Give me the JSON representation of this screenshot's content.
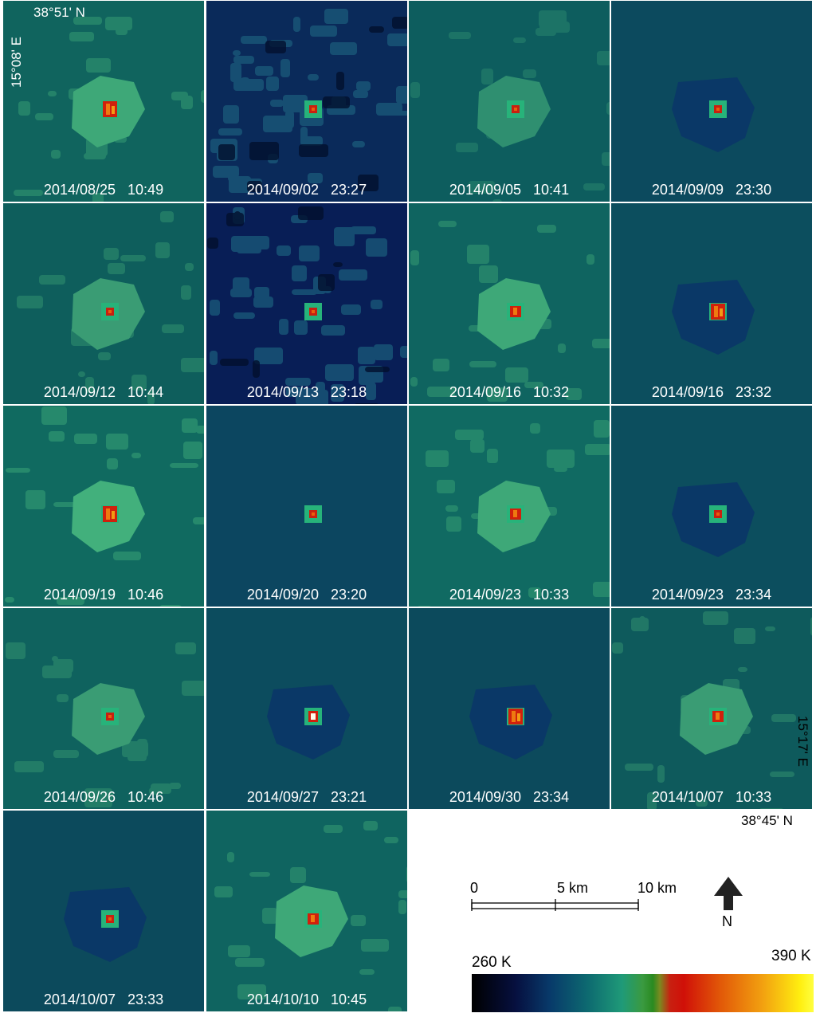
{
  "coordinates": {
    "top_lat": "38°51' N",
    "left_lon": "15°08' E",
    "right_lon": "15°17' E",
    "bottom_lat": "38°45' N"
  },
  "tiles": [
    {
      "date": "2014/08/25",
      "time": "10:49",
      "background": "#10645e",
      "island": "#3ea878",
      "dark_halo": false,
      "hot": "large"
    },
    {
      "date": "2014/09/02",
      "time": "23:27",
      "background": "#0a2a5a",
      "island": null,
      "dark_halo": false,
      "hot": "small",
      "night_clouds": true
    },
    {
      "date": "2014/09/05",
      "time": "10:41",
      "background": "#0d5d5e",
      "island": "#2f8f70",
      "dark_halo": false,
      "hot": "small"
    },
    {
      "date": "2014/09/09",
      "time": "23:30",
      "background": "#0c4a5e",
      "island": null,
      "dark_halo": true,
      "hot": "small"
    },
    {
      "date": "2014/09/12",
      "time": "10:44",
      "background": "#0e5e5c",
      "island": "#3a9c74",
      "dark_halo": false,
      "hot": "small"
    },
    {
      "date": "2014/09/13",
      "time": "23:18",
      "background": "#081e56",
      "island": null,
      "dark_halo": false,
      "hot": "small",
      "night_clouds": true
    },
    {
      "date": "2014/09/16",
      "time": "10:32",
      "background": "#0f6460",
      "island": "#3ea878",
      "dark_halo": false,
      "hot": "medium"
    },
    {
      "date": "2014/09/16",
      "time": "23:32",
      "background": "#0c4e5e",
      "island": null,
      "dark_halo": true,
      "hot": "large"
    },
    {
      "date": "2014/09/19",
      "time": "10:46",
      "background": "#106a60",
      "island": "#42b07c",
      "dark_halo": false,
      "hot": "large"
    },
    {
      "date": "2014/09/20",
      "time": "23:20",
      "background": "#0c4660",
      "island": null,
      "dark_halo": false,
      "hot": "small"
    },
    {
      "date": "2014/09/23",
      "time": "10:33",
      "background": "#106a62",
      "island": "#3ea878",
      "dark_halo": false,
      "hot": "medium"
    },
    {
      "date": "2014/09/23",
      "time": "23:34",
      "background": "#0c4e5e",
      "island": null,
      "dark_halo": true,
      "hot": "small"
    },
    {
      "date": "2014/09/26",
      "time": "10:46",
      "background": "#0f625e",
      "island": "#3a9c74",
      "dark_halo": false,
      "hot": "small"
    },
    {
      "date": "2014/09/27",
      "time": "23:21",
      "background": "#0c4c5e",
      "island": null,
      "dark_halo": true,
      "hot": "white"
    },
    {
      "date": "2014/09/30",
      "time": "23:34",
      "background": "#0c4a5c",
      "island": null,
      "dark_halo": true,
      "hot": "large"
    },
    {
      "date": "2014/10/07",
      "time": "10:33",
      "background": "#0e5a5c",
      "island": "#3a9c74",
      "dark_halo": false,
      "hot": "medium"
    },
    {
      "date": "2014/10/07",
      "time": "23:33",
      "background": "#0c4a5c",
      "island": null,
      "dark_halo": true,
      "hot": "small"
    },
    {
      "date": "2014/10/10",
      "time": "10:45",
      "background": "#0f6460",
      "island": "#3ea878",
      "dark_halo": false,
      "hot": "medium"
    }
  ],
  "scale_bar": {
    "labels": [
      "0",
      "5 km",
      "10 km"
    ]
  },
  "north_arrow": {
    "label": "N"
  },
  "colorbar": {
    "min_label": "260 K",
    "max_label": "390 K"
  }
}
